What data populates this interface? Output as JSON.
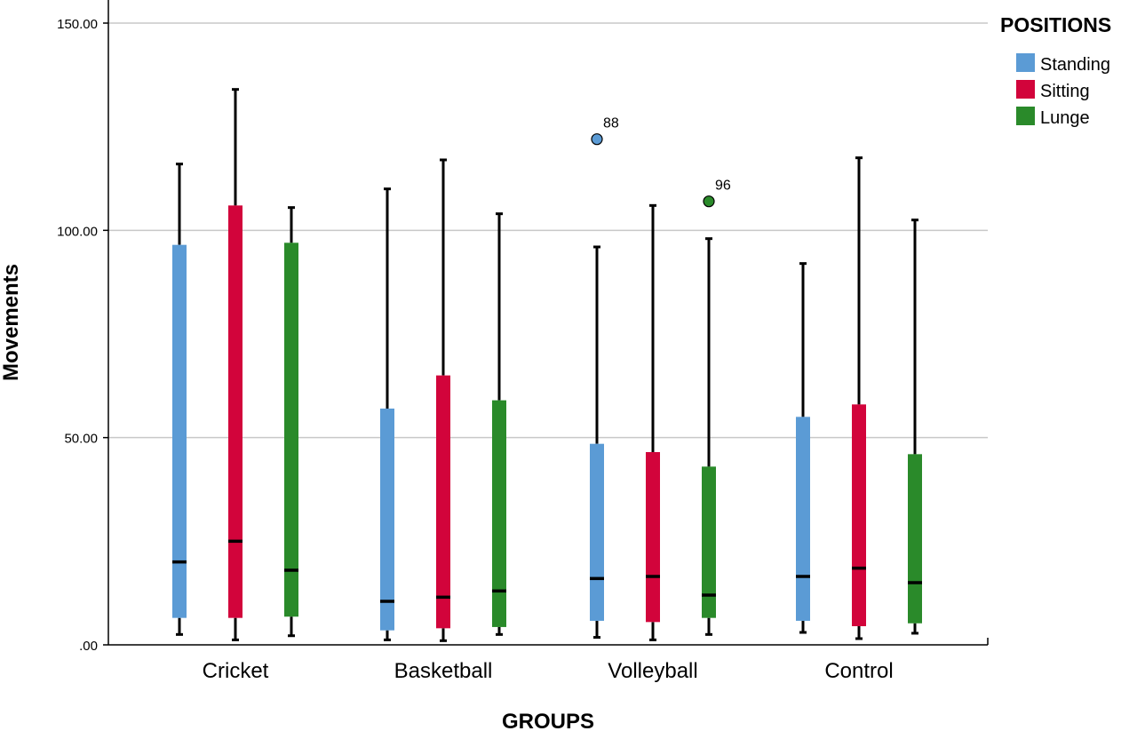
{
  "chart_data": {
    "type": "boxplot",
    "title": "",
    "xlabel": "GROUPS",
    "ylabel": "Movements",
    "ylim": [
      0,
      150
    ],
    "yticks": [
      {
        "value": 0,
        "label": ".00"
      },
      {
        "value": 50,
        "label": "50.00"
      },
      {
        "value": 100,
        "label": "100.00"
      },
      {
        "value": 150,
        "label": "150.00"
      }
    ],
    "grid": "horizontal",
    "legend": {
      "title": "POSITIONS",
      "placement": "top-right"
    },
    "categories": [
      "Cricket",
      "Basketball",
      "Volleyball",
      "Control"
    ],
    "series": [
      {
        "name": "Standing",
        "color": "#5b9bd5",
        "boxes": [
          {
            "whisker_low": 2.5,
            "q1": 6.5,
            "median": 20,
            "q3": 96.5,
            "whisker_high": 116
          },
          {
            "whisker_low": 1.2,
            "q1": 3.5,
            "median": 10.5,
            "q3": 57,
            "whisker_high": 110
          },
          {
            "whisker_low": 1.8,
            "q1": 5.8,
            "median": 16,
            "q3": 48.5,
            "whisker_high": 96
          },
          {
            "whisker_low": 3,
            "q1": 5.8,
            "median": 16.5,
            "q3": 55,
            "whisker_high": 92
          }
        ]
      },
      {
        "name": "Sitting",
        "color": "#d2043b",
        "boxes": [
          {
            "whisker_low": 1.2,
            "q1": 6.5,
            "median": 25,
            "q3": 106,
            "whisker_high": 134
          },
          {
            "whisker_low": 1,
            "q1": 4,
            "median": 11.5,
            "q3": 65,
            "whisker_high": 117
          },
          {
            "whisker_low": 1.2,
            "q1": 5.5,
            "median": 16.5,
            "q3": 46.5,
            "whisker_high": 106
          },
          {
            "whisker_low": 1.5,
            "q1": 4.5,
            "median": 18.5,
            "q3": 58,
            "whisker_high": 117.5
          }
        ]
      },
      {
        "name": "Lunge",
        "color": "#2a8a2a",
        "boxes": [
          {
            "whisker_low": 2.2,
            "q1": 6.8,
            "median": 18,
            "q3": 97,
            "whisker_high": 105.5
          },
          {
            "whisker_low": 2.5,
            "q1": 4.3,
            "median": 13,
            "q3": 59,
            "whisker_high": 104
          },
          {
            "whisker_low": 2.5,
            "q1": 6.5,
            "median": 12,
            "q3": 43,
            "whisker_high": 98
          },
          {
            "whisker_low": 2.8,
            "q1": 5.2,
            "median": 15,
            "q3": 46,
            "whisker_high": 102.5
          }
        ]
      }
    ],
    "outliers": [
      {
        "category": "Volleyball",
        "series": "Standing",
        "value": 122,
        "label": "88"
      },
      {
        "category": "Volleyball",
        "series": "Lunge",
        "value": 107,
        "label": "96"
      }
    ]
  }
}
